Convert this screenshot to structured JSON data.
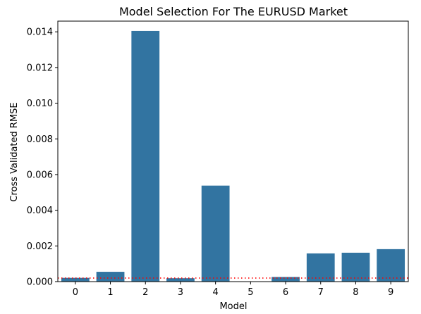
{
  "chart_data": {
    "type": "bar",
    "title": "Model Selection For The EURUSD Market",
    "xlabel": "Model",
    "ylabel": "Cross Validated RMSE",
    "categories": [
      "0",
      "1",
      "2",
      "3",
      "4",
      "5",
      "6",
      "7",
      "8",
      "9"
    ],
    "values": [
      0.00021,
      0.00055,
      0.01405,
      0.00019,
      0.00538,
      0.0,
      0.00026,
      0.00158,
      0.00162,
      0.00182
    ],
    "ylim": [
      0,
      0.0146
    ],
    "yticks": [
      "0.000",
      "0.002",
      "0.004",
      "0.006",
      "0.008",
      "0.010",
      "0.012",
      "0.014"
    ],
    "ytick_values": [
      0,
      0.002,
      0.004,
      0.006,
      0.008,
      0.01,
      0.012,
      0.014
    ],
    "reference_line": {
      "value": 0.0002,
      "color": "#ff0000",
      "style": "dotted"
    },
    "bar_color": "#3274a1",
    "grid": false,
    "legend": "none"
  }
}
